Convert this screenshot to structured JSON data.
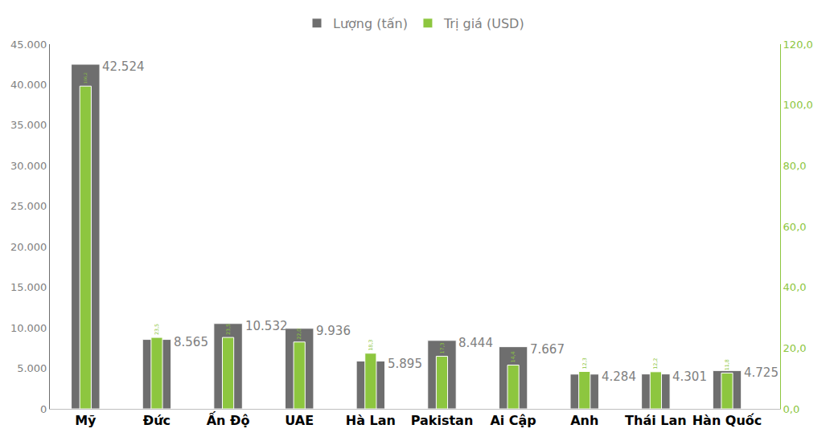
{
  "chart_data": {
    "type": "bar",
    "categories": [
      "Mỹ",
      "Đức",
      "Ấn Độ",
      "UAE",
      "Hà Lan",
      "Pakistan",
      "Ai Cập",
      "Anh",
      "Thái Lan",
      "Hàn Quốc"
    ],
    "series": [
      {
        "name": "Lượng (tấn)",
        "color": "#6e6e6e",
        "values": [
          42524,
          8565,
          10532,
          9936,
          5895,
          8444,
          7667,
          4284,
          4301,
          4725
        ],
        "value_labels": [
          "42.524",
          "8.565",
          "10.532",
          "9.936",
          "5.895",
          "8.444",
          "7.667",
          "4.284",
          "4.301",
          "4.725"
        ]
      },
      {
        "name": "Trị giá (USD)",
        "color": "#8dc63f",
        "axis": "y2",
        "values": [
          106.2,
          23.5,
          23.5,
          22.0,
          18.3,
          17.3,
          14.4,
          12.3,
          12.2,
          11.8
        ],
        "value_labels": [
          "106,2",
          "23,5",
          "23,5",
          "22,0",
          "18,3",
          "17,3",
          "14,4",
          "12,3",
          "12,2",
          "11,8"
        ]
      }
    ],
    "ylim": [
      0,
      45000
    ],
    "yticks": [
      0,
      {
        "value": 5000,
        "label": "5.000"
      },
      {
        "value": 10000,
        "label": "10.000"
      },
      {
        "value": 15000,
        "label": "15.000"
      },
      {
        "value": 20000,
        "label": "20.000"
      },
      {
        "value": 25000,
        "label": "25.000"
      },
      {
        "value": 30000,
        "label": "30.000"
      },
      {
        "value": 35000,
        "label": "35.000"
      },
      {
        "value": 40000,
        "label": "40.000"
      },
      {
        "value": 45000,
        "label": "45.000"
      }
    ],
    "y2lim": [
      0,
      120
    ],
    "y2ticks": [
      {
        "value": 0,
        "label": "0,0"
      },
      {
        "value": 20,
        "label": "20,0"
      },
      {
        "value": 40,
        "label": "40,0"
      },
      {
        "value": 60,
        "label": "60,0"
      },
      {
        "value": 80,
        "label": "80,0"
      },
      {
        "value": 100,
        "label": "100,0"
      },
      {
        "value": 120,
        "label": "120,0"
      }
    ],
    "legend": "top",
    "data_labels": true,
    "grid": false
  }
}
